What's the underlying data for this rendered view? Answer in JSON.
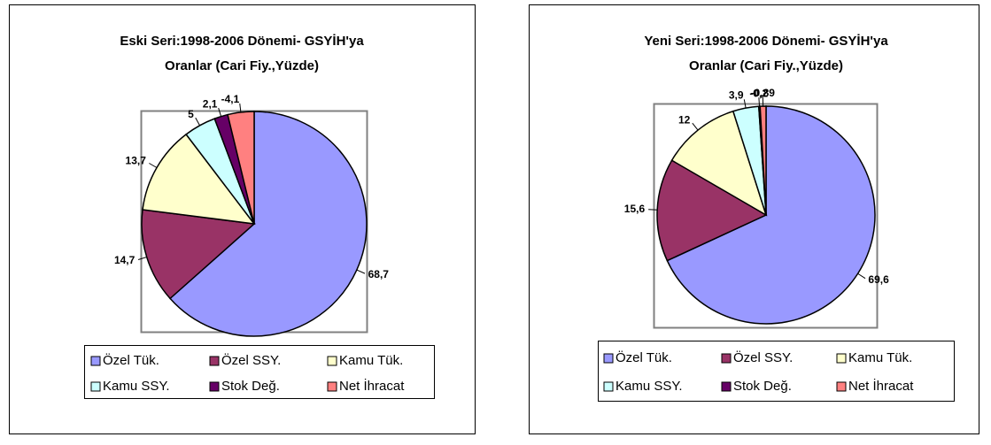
{
  "chart_data": [
    {
      "type": "pie",
      "title": [
        "Eski Seri:1998-2006 Dönemi- GSYİH'ya",
        "Oranlar (Cari Fiy.,Yüzde)"
      ],
      "categories": [
        "Özel Tük.",
        "Özel SSY.",
        "Kamu Tük.",
        "Kamu SSY.",
        "Stok Değ.",
        "Net İhracat"
      ],
      "values": [
        68.7,
        14.7,
        13.7,
        5,
        2.1,
        -4.1
      ],
      "value_labels": [
        "68,7",
        "14,7",
        "13,7",
        "5",
        "2,1",
        "-4,1"
      ],
      "colors": [
        "#9999ff",
        "#993366",
        "#ffffcc",
        "#ccffff",
        "#660066",
        "#ff8080"
      ]
    },
    {
      "type": "pie",
      "title": [
        "Yeni Seri:1998-2006 Dönemi- GSYİH'ya",
        "Oranlar (Cari Fiy.,Yüzde)"
      ],
      "categories": [
        "Özel Tük.",
        "Özel SSY.",
        "Kamu Tük.",
        "Kamu SSY.",
        "Stok Değ.",
        "Net İhracat"
      ],
      "values": [
        69.6,
        15.6,
        12,
        3.9,
        -0.2,
        -0.89
      ],
      "value_labels": [
        "69,6",
        "15,6",
        "12",
        "3,9",
        "-0,2",
        "-0,89"
      ],
      "colors": [
        "#9999ff",
        "#993366",
        "#ffffcc",
        "#ccffff",
        "#660066",
        "#ff8080"
      ]
    }
  ]
}
